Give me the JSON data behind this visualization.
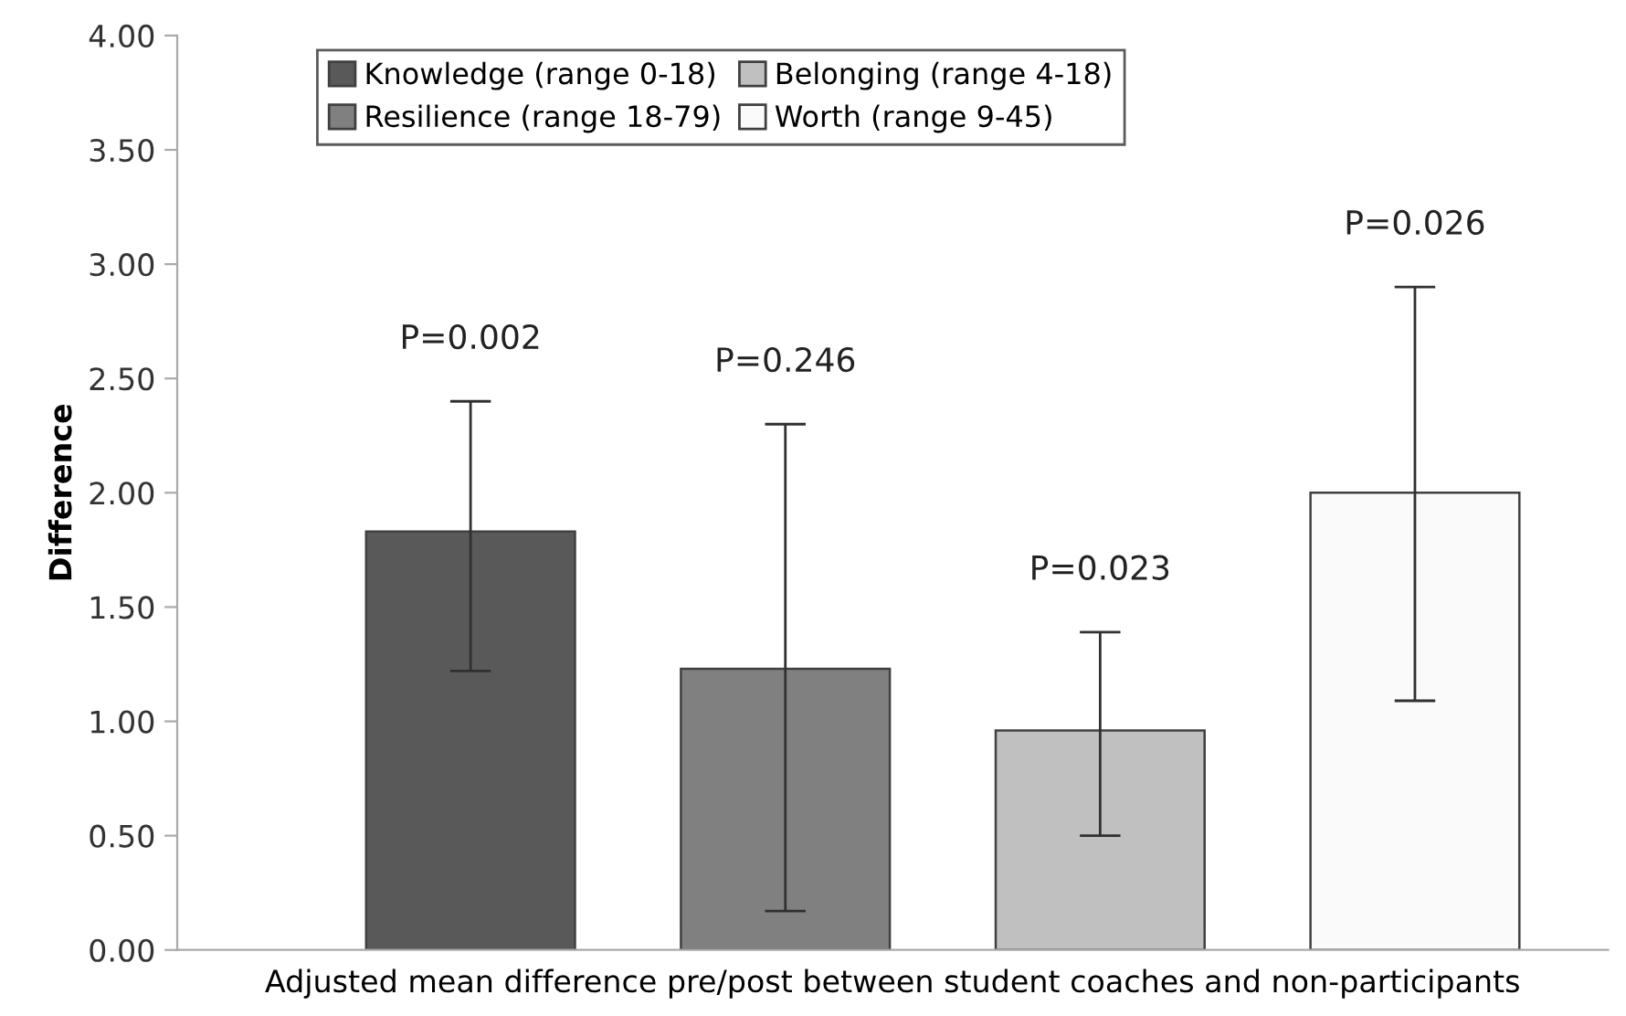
{
  "chart_data": {
    "type": "bar",
    "categories": [
      null
    ],
    "xlabel": "Adjusted mean difference pre/post between student coaches and non-participants",
    "ylabel": "Difference",
    "ylim": [
      0,
      4
    ],
    "yticks": [
      {
        "value": 0,
        "label": "0.00"
      },
      {
        "value": 0.5,
        "label": "0.50"
      },
      {
        "value": 1,
        "label": "1.00"
      },
      {
        "value": 1.5,
        "label": "1.50"
      },
      {
        "value": 2,
        "label": "2.00"
      },
      {
        "value": 2.5,
        "label": "2.50"
      },
      {
        "value": 3,
        "label": "3.00"
      },
      {
        "value": 3.5,
        "label": "3.50"
      },
      {
        "value": 4,
        "label": "4.00"
      }
    ],
    "series": [
      {
        "name": "Knowledge (range 0-18)",
        "color": "#595959",
        "values": [
          1.83
        ],
        "errors": [
          [
            1.22,
            2.4
          ]
        ]
      },
      {
        "name": "Resilience (range 18-79)",
        "color": "#808080",
        "values": [
          1.23
        ],
        "errors": [
          [
            0.17,
            2.3
          ]
        ]
      },
      {
        "name": "Belonging (range 4-18)",
        "color": "#c0c0c0",
        "values": [
          0.96
        ],
        "errors": [
          [
            0.5,
            1.39
          ]
        ]
      },
      {
        "name": "Worth (range 9-45)",
        "color": "#fafafa",
        "values": [
          2.0
        ],
        "errors": [
          [
            1.09,
            2.9
          ]
        ]
      }
    ],
    "annotations": [
      "P=0.002",
      "P=0.246",
      "P=0.023",
      "P=0.026"
    ],
    "legend": "top",
    "grid": false
  }
}
